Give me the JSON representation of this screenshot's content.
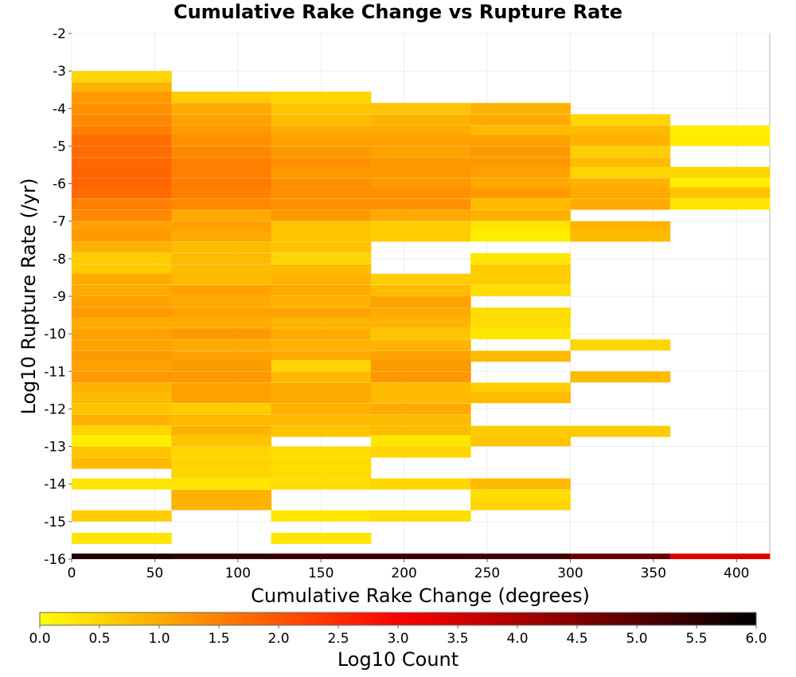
{
  "chart_data": {
    "type": "heatmap",
    "title": "Cumulative Rake Change vs Rupture Rate",
    "xlabel": "Cumulative Rake Change (degrees)",
    "ylabel": "Log10 Rupture Rate (/yr)",
    "xlim": [
      0,
      420
    ],
    "ylim": [
      -16,
      -2
    ],
    "x_ticks": [
      "0",
      "50",
      "100",
      "150",
      "200",
      "250",
      "300",
      "350",
      "400"
    ],
    "y_ticks": [
      "-2",
      "-3",
      "-4",
      "-5",
      "-6",
      "-7",
      "-8",
      "-9",
      "-10",
      "-11",
      "-12",
      "-13",
      "-14",
      "-15",
      "-16"
    ],
    "grid": true,
    "x_bin_width": 60,
    "y_bin_height": 0.285,
    "x_bin_starts": [
      0,
      60,
      120,
      180,
      240,
      300,
      360
    ],
    "columns": [
      {
        "x_start": 0,
        "cells": [
          {
            "y": -3.0,
            "v": 0.5
          },
          {
            "y": -3.3,
            "v": 0.9
          },
          {
            "y": -3.55,
            "v": 1.2
          },
          {
            "y": -3.85,
            "v": 1.3
          },
          {
            "y": -4.15,
            "v": 1.4
          },
          {
            "y": -4.45,
            "v": 1.5
          },
          {
            "y": -4.7,
            "v": 1.7
          },
          {
            "y": -5.0,
            "v": 1.75
          },
          {
            "y": -5.3,
            "v": 1.75
          },
          {
            "y": -5.55,
            "v": 1.8
          },
          {
            "y": -5.85,
            "v": 1.8
          },
          {
            "y": -6.1,
            "v": 1.75
          },
          {
            "y": -6.4,
            "v": 1.5
          },
          {
            "y": -6.7,
            "v": 1.4
          },
          {
            "y": -7.0,
            "v": 1.1
          },
          {
            "y": -7.25,
            "v": 1.2
          },
          {
            "y": -7.55,
            "v": 0.9
          },
          {
            "y": -7.85,
            "v": 0.6
          },
          {
            "y": -8.15,
            "v": 0.6
          },
          {
            "y": -8.4,
            "v": 1.0
          },
          {
            "y": -8.7,
            "v": 1.0
          },
          {
            "y": -9.0,
            "v": 1.1
          },
          {
            "y": -9.3,
            "v": 1.2
          },
          {
            "y": -9.55,
            "v": 1.0
          },
          {
            "y": -9.85,
            "v": 1.1
          },
          {
            "y": -10.15,
            "v": 1.1
          },
          {
            "y": -10.45,
            "v": 1.2
          },
          {
            "y": -10.7,
            "v": 1.1
          },
          {
            "y": -11.0,
            "v": 1.2
          },
          {
            "y": -11.3,
            "v": 0.9
          },
          {
            "y": -11.55,
            "v": 0.8
          },
          {
            "y": -11.85,
            "v": 0.7
          },
          {
            "y": -12.15,
            "v": 0.9
          },
          {
            "y": -12.45,
            "v": 0.5
          },
          {
            "y": -12.7,
            "v": 0.2
          },
          {
            "y": -13.0,
            "v": 0.7
          },
          {
            "y": -13.3,
            "v": 0.8
          },
          {
            "y": -13.85,
            "v": 0.3
          },
          {
            "y": -14.7,
            "v": 0.6
          },
          {
            "y": -15.3,
            "v": 0.3
          }
        ]
      },
      {
        "x_start": 60,
        "cells": [
          {
            "y": -3.55,
            "v": 0.6
          },
          {
            "y": -3.85,
            "v": 1.0
          },
          {
            "y": -4.15,
            "v": 1.1
          },
          {
            "y": -4.45,
            "v": 1.2
          },
          {
            "y": -4.7,
            "v": 1.3
          },
          {
            "y": -5.0,
            "v": 1.4
          },
          {
            "y": -5.3,
            "v": 1.5
          },
          {
            "y": -5.55,
            "v": 1.5
          },
          {
            "y": -5.85,
            "v": 1.55
          },
          {
            "y": -6.1,
            "v": 1.5
          },
          {
            "y": -6.4,
            "v": 1.4
          },
          {
            "y": -6.7,
            "v": 1.0
          },
          {
            "y": -7.0,
            "v": 1.1
          },
          {
            "y": -7.25,
            "v": 1.0
          },
          {
            "y": -7.55,
            "v": 0.8
          },
          {
            "y": -7.85,
            "v": 0.8
          },
          {
            "y": -8.15,
            "v": 0.8
          },
          {
            "y": -8.4,
            "v": 0.8
          },
          {
            "y": -8.7,
            "v": 1.1
          },
          {
            "y": -9.0,
            "v": 1.0
          },
          {
            "y": -9.3,
            "v": 1.1
          },
          {
            "y": -9.55,
            "v": 1.0
          },
          {
            "y": -9.85,
            "v": 1.2
          },
          {
            "y": -10.15,
            "v": 1.0
          },
          {
            "y": -10.45,
            "v": 1.1
          },
          {
            "y": -10.7,
            "v": 1.2
          },
          {
            "y": -11.0,
            "v": 1.2
          },
          {
            "y": -11.3,
            "v": 1.1
          },
          {
            "y": -11.55,
            "v": 1.1
          },
          {
            "y": -11.85,
            "v": 0.6
          },
          {
            "y": -12.15,
            "v": 0.8
          },
          {
            "y": -12.45,
            "v": 0.9
          },
          {
            "y": -12.7,
            "v": 0.7
          },
          {
            "y": -13.0,
            "v": 0.5
          },
          {
            "y": -13.3,
            "v": 0.5
          },
          {
            "y": -13.55,
            "v": 0.5
          },
          {
            "y": -13.85,
            "v": 0.3
          },
          {
            "y": -14.15,
            "v": 0.9
          },
          {
            "y": -14.4,
            "v": 0.9
          }
        ]
      },
      {
        "x_start": 120,
        "cells": [
          {
            "y": -3.55,
            "v": 0.5
          },
          {
            "y": -3.85,
            "v": 0.7
          },
          {
            "y": -4.15,
            "v": 0.8
          },
          {
            "y": -4.45,
            "v": 1.0
          },
          {
            "y": -4.7,
            "v": 1.1
          },
          {
            "y": -5.0,
            "v": 1.2
          },
          {
            "y": -5.3,
            "v": 1.3
          },
          {
            "y": -5.55,
            "v": 1.2
          },
          {
            "y": -5.85,
            "v": 1.3
          },
          {
            "y": -6.1,
            "v": 1.3
          },
          {
            "y": -6.4,
            "v": 1.3
          },
          {
            "y": -6.7,
            "v": 1.2
          },
          {
            "y": -7.0,
            "v": 0.7
          },
          {
            "y": -7.25,
            "v": 0.7
          },
          {
            "y": -7.55,
            "v": 0.7
          },
          {
            "y": -7.85,
            "v": 0.5
          },
          {
            "y": -8.15,
            "v": 0.8
          },
          {
            "y": -8.4,
            "v": 0.9
          },
          {
            "y": -8.7,
            "v": 1.0
          },
          {
            "y": -9.0,
            "v": 0.9
          },
          {
            "y": -9.3,
            "v": 1.1
          },
          {
            "y": -9.55,
            "v": 0.9
          },
          {
            "y": -9.85,
            "v": 1.0
          },
          {
            "y": -10.15,
            "v": 0.9
          },
          {
            "y": -10.45,
            "v": 1.0
          },
          {
            "y": -10.7,
            "v": 0.5
          },
          {
            "y": -11.0,
            "v": 0.8
          },
          {
            "y": -11.3,
            "v": 1.0
          },
          {
            "y": -11.55,
            "v": 1.0
          },
          {
            "y": -11.85,
            "v": 0.9
          },
          {
            "y": -12.15,
            "v": 0.8
          },
          {
            "y": -12.45,
            "v": 0.7
          },
          {
            "y": -13.0,
            "v": 0.4
          },
          {
            "y": -13.3,
            "v": 0.4
          },
          {
            "y": -13.55,
            "v": 0.4
          },
          {
            "y": -13.85,
            "v": 0.4
          },
          {
            "y": -14.7,
            "v": 0.3
          },
          {
            "y": -15.3,
            "v": 0.3
          }
        ]
      },
      {
        "x_start": 180,
        "cells": [
          {
            "y": -3.85,
            "v": 0.7
          },
          {
            "y": -4.15,
            "v": 0.9
          },
          {
            "y": -4.45,
            "v": 1.0
          },
          {
            "y": -4.7,
            "v": 1.1
          },
          {
            "y": -5.0,
            "v": 1.1
          },
          {
            "y": -5.3,
            "v": 1.2
          },
          {
            "y": -5.55,
            "v": 1.2
          },
          {
            "y": -5.85,
            "v": 1.2
          },
          {
            "y": -6.1,
            "v": 1.3
          },
          {
            "y": -6.4,
            "v": 1.3
          },
          {
            "y": -6.7,
            "v": 1.0
          },
          {
            "y": -7.0,
            "v": 0.6
          },
          {
            "y": -7.25,
            "v": 0.6
          },
          {
            "y": -8.4,
            "v": 0.6
          },
          {
            "y": -8.7,
            "v": 0.8
          },
          {
            "y": -9.0,
            "v": 1.1
          },
          {
            "y": -9.3,
            "v": 1.0
          },
          {
            "y": -9.55,
            "v": 0.9
          },
          {
            "y": -9.85,
            "v": 0.7
          },
          {
            "y": -10.15,
            "v": 0.9
          },
          {
            "y": -10.45,
            "v": 1.1
          },
          {
            "y": -10.7,
            "v": 1.2
          },
          {
            "y": -11.0,
            "v": 1.2
          },
          {
            "y": -11.3,
            "v": 0.8
          },
          {
            "y": -11.55,
            "v": 0.8
          },
          {
            "y": -11.85,
            "v": 1.0
          },
          {
            "y": -12.15,
            "v": 0.8
          },
          {
            "y": -12.45,
            "v": 0.8
          },
          {
            "y": -12.7,
            "v": 0.3
          },
          {
            "y": -13.0,
            "v": 0.5
          },
          {
            "y": -13.85,
            "v": 0.5
          },
          {
            "y": -14.7,
            "v": 0.4
          }
        ]
      },
      {
        "x_start": 240,
        "cells": [
          {
            "y": -3.85,
            "v": 0.9
          },
          {
            "y": -4.15,
            "v": 1.0
          },
          {
            "y": -4.45,
            "v": 0.8
          },
          {
            "y": -4.7,
            "v": 1.1
          },
          {
            "y": -5.0,
            "v": 1.2
          },
          {
            "y": -5.3,
            "v": 1.2
          },
          {
            "y": -5.55,
            "v": 1.1
          },
          {
            "y": -5.85,
            "v": 1.0
          },
          {
            "y": -6.1,
            "v": 1.2
          },
          {
            "y": -6.4,
            "v": 0.8
          },
          {
            "y": -6.7,
            "v": 0.9
          },
          {
            "y": -7.0,
            "v": 0.3
          },
          {
            "y": -7.25,
            "v": 0.2
          },
          {
            "y": -7.85,
            "v": 0.3
          },
          {
            "y": -8.15,
            "v": 0.6
          },
          {
            "y": -8.4,
            "v": 0.6
          },
          {
            "y": -8.7,
            "v": 0.4
          },
          {
            "y": -9.3,
            "v": 0.4
          },
          {
            "y": -9.55,
            "v": 0.4
          },
          {
            "y": -9.85,
            "v": 0.3
          },
          {
            "y": -10.45,
            "v": 0.8
          },
          {
            "y": -11.3,
            "v": 0.6
          },
          {
            "y": -11.55,
            "v": 0.8
          },
          {
            "y": -12.45,
            "v": 0.6
          },
          {
            "y": -12.7,
            "v": 0.7
          },
          {
            "y": -13.85,
            "v": 0.8
          },
          {
            "y": -14.15,
            "v": 0.4
          },
          {
            "y": -14.4,
            "v": 0.5
          }
        ]
      },
      {
        "x_start": 300,
        "cells": [
          {
            "y": -4.15,
            "v": 0.5
          },
          {
            "y": -4.45,
            "v": 0.8
          },
          {
            "y": -4.7,
            "v": 0.9
          },
          {
            "y": -5.0,
            "v": 0.6
          },
          {
            "y": -5.3,
            "v": 0.8
          },
          {
            "y": -5.55,
            "v": 0.5
          },
          {
            "y": -5.85,
            "v": 0.9
          },
          {
            "y": -6.1,
            "v": 1.0
          },
          {
            "y": -6.4,
            "v": 1.0
          },
          {
            "y": -7.0,
            "v": 0.9
          },
          {
            "y": -7.25,
            "v": 0.8
          },
          {
            "y": -10.15,
            "v": 0.5
          },
          {
            "y": -11.0,
            "v": 0.8
          },
          {
            "y": -12.45,
            "v": 0.6
          }
        ]
      },
      {
        "x_start": 360,
        "cells": [
          {
            "y": -4.45,
            "v": 0.2
          },
          {
            "y": -4.7,
            "v": 0.25
          },
          {
            "y": -5.55,
            "v": 0.5
          },
          {
            "y": -5.85,
            "v": 0.2
          },
          {
            "y": -6.1,
            "v": 0.7
          },
          {
            "y": -6.4,
            "v": 0.3
          }
        ]
      }
    ],
    "bottom_strip": {
      "y": -16,
      "values": [
        {
          "x_start": 0,
          "v": 5.6
        },
        {
          "x_start": 60,
          "v": 5.4
        },
        {
          "x_start": 120,
          "v": 5.3
        },
        {
          "x_start": 180,
          "v": 5.3
        },
        {
          "x_start": 240,
          "v": 5.2
        },
        {
          "x_start": 300,
          "v": 4.8
        },
        {
          "x_start": 360,
          "v": 3.4
        }
      ]
    },
    "colorbar": {
      "label": "Log10 Count",
      "min": 0.0,
      "max": 6.0,
      "ticks": [
        "0.0",
        "0.5",
        "1.0",
        "1.5",
        "2.0",
        "2.5",
        "3.0",
        "3.5",
        "4.0",
        "4.5",
        "5.0",
        "5.5",
        "6.0"
      ],
      "colormap": [
        "#ffff00",
        "#ff8000",
        "#ff0000",
        "#800000",
        "#000000"
      ]
    }
  }
}
